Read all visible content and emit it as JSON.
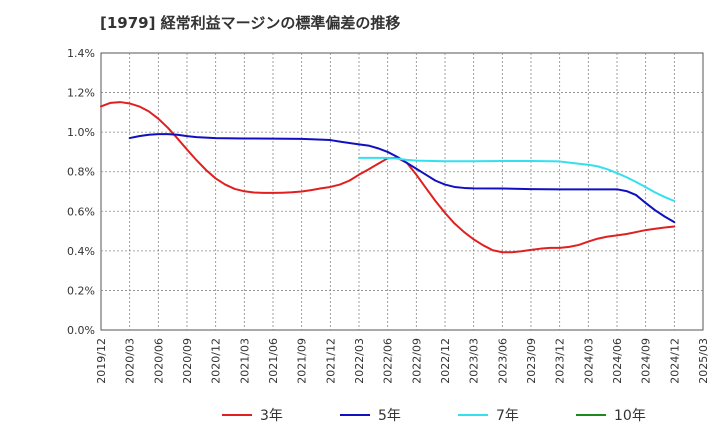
{
  "title": "[1979]  経常利益マージンの標準偏差の推移",
  "colors": {
    "3y": "#e02020",
    "5y": "#1010c0",
    "7y": "#33e0ee",
    "10y": "#1a8a1a",
    "grid": "#888888",
    "axis": "#555555"
  },
  "chart_data": {
    "type": "line",
    "title": "[1979]  経常利益マージンの標準偏差の推移",
    "xlabel": "",
    "ylabel": "",
    "ylim": [
      0,
      0.014
    ],
    "x_ticks": [
      "2019/12",
      "2020/03",
      "2020/06",
      "2020/09",
      "2020/12",
      "2021/03",
      "2021/06",
      "2021/09",
      "2021/12",
      "2022/03",
      "2022/06",
      "2022/09",
      "2022/12",
      "2023/03",
      "2023/06",
      "2023/09",
      "2023/12",
      "2024/03",
      "2024/06",
      "2024/09",
      "2024/12",
      "2025/03"
    ],
    "y_ticks": [
      "0.0%",
      "0.2%",
      "0.4%",
      "0.6%",
      "0.8%",
      "1.0%",
      "1.2%",
      "1.4%"
    ],
    "grid": true,
    "legend_position": "bottom",
    "series": [
      {
        "name": "3年",
        "color_key": "3y",
        "points": [
          [
            "2019/12",
            0.0113
          ],
          [
            "2020/01",
            0.01148
          ],
          [
            "2020/02",
            0.01152
          ],
          [
            "2020/03",
            0.01145
          ],
          [
            "2020/04",
            0.0113
          ],
          [
            "2020/05",
            0.01105
          ],
          [
            "2020/06",
            0.01068
          ],
          [
            "2020/07",
            0.01022
          ],
          [
            "2020/08",
            0.00968
          ],
          [
            "2020/09",
            0.00912
          ],
          [
            "2020/10",
            0.00858
          ],
          [
            "2020/11",
            0.00808
          ],
          [
            "2020/12",
            0.00766
          ],
          [
            "2021/01",
            0.00735
          ],
          [
            "2021/02",
            0.00713
          ],
          [
            "2021/03",
            0.00701
          ],
          [
            "2021/04",
            0.00695
          ],
          [
            "2021/05",
            0.00693
          ],
          [
            "2021/06",
            0.00693
          ],
          [
            "2021/07",
            0.00694
          ],
          [
            "2021/08",
            0.00696
          ],
          [
            "2021/09",
            0.007
          ],
          [
            "2021/10",
            0.00707
          ],
          [
            "2021/11",
            0.00716
          ],
          [
            "2021/12",
            0.00723
          ],
          [
            "2022/01",
            0.00735
          ],
          [
            "2022/02",
            0.00755
          ],
          [
            "2022/03",
            0.00785
          ],
          [
            "2022/04",
            0.00812
          ],
          [
            "2022/05",
            0.0084
          ],
          [
            "2022/06",
            0.00868
          ],
          [
            "2022/07",
            0.0087
          ],
          [
            "2022/08",
            0.00845
          ],
          [
            "2022/09",
            0.00785
          ],
          [
            "2022/10",
            0.00718
          ],
          [
            "2022/11",
            0.00652
          ],
          [
            "2022/12",
            0.00592
          ],
          [
            "2023/01",
            0.00538
          ],
          [
            "2023/02",
            0.00495
          ],
          [
            "2023/03",
            0.00458
          ],
          [
            "2023/04",
            0.00428
          ],
          [
            "2023/05",
            0.00403
          ],
          [
            "2023/06",
            0.00393
          ],
          [
            "2023/07",
            0.00393
          ],
          [
            "2023/08",
            0.00398
          ],
          [
            "2023/09",
            0.00405
          ],
          [
            "2023/10",
            0.00411
          ],
          [
            "2023/11",
            0.00415
          ],
          [
            "2023/12",
            0.00415
          ],
          [
            "2024/01",
            0.0042
          ],
          [
            "2024/02",
            0.0043
          ],
          [
            "2024/03",
            0.00447
          ],
          [
            "2024/04",
            0.00462
          ],
          [
            "2024/05",
            0.00472
          ],
          [
            "2024/06",
            0.00478
          ],
          [
            "2024/07",
            0.00485
          ],
          [
            "2024/08",
            0.00495
          ],
          [
            "2024/09",
            0.00505
          ],
          [
            "2024/10",
            0.00512
          ],
          [
            "2024/11",
            0.00518
          ],
          [
            "2024/12",
            0.00523
          ]
        ]
      },
      {
        "name": "5年",
        "color_key": "5y",
        "points": [
          [
            "2020/03",
            0.0097
          ],
          [
            "2020/04",
            0.0098
          ],
          [
            "2020/05",
            0.00987
          ],
          [
            "2020/06",
            0.0099
          ],
          [
            "2020/07",
            0.0099
          ],
          [
            "2020/08",
            0.00987
          ],
          [
            "2020/09",
            0.0098
          ],
          [
            "2020/10",
            0.00975
          ],
          [
            "2020/11",
            0.00972
          ],
          [
            "2020/12",
            0.0097
          ],
          [
            "2021/03",
            0.00968
          ],
          [
            "2021/06",
            0.00967
          ],
          [
            "2021/09",
            0.00966
          ],
          [
            "2021/12",
            0.0096
          ],
          [
            "2022/01",
            0.00952
          ],
          [
            "2022/02",
            0.00945
          ],
          [
            "2022/03",
            0.00938
          ],
          [
            "2022/04",
            0.00932
          ],
          [
            "2022/05",
            0.00918
          ],
          [
            "2022/06",
            0.009
          ],
          [
            "2022/07",
            0.00875
          ],
          [
            "2022/08",
            0.00845
          ],
          [
            "2022/09",
            0.00815
          ],
          [
            "2022/10",
            0.00785
          ],
          [
            "2022/11",
            0.00755
          ],
          [
            "2022/12",
            0.00735
          ],
          [
            "2023/01",
            0.00723
          ],
          [
            "2023/02",
            0.00718
          ],
          [
            "2023/03",
            0.00716
          ],
          [
            "2023/06",
            0.00715
          ],
          [
            "2023/09",
            0.00712
          ],
          [
            "2023/12",
            0.00711
          ],
          [
            "2024/03",
            0.00711
          ],
          [
            "2024/06",
            0.00711
          ],
          [
            "2024/07",
            0.00702
          ],
          [
            "2024/08",
            0.00682
          ],
          [
            "2024/09",
            0.00642
          ],
          [
            "2024/10",
            0.00605
          ],
          [
            "2024/11",
            0.00573
          ],
          [
            "2024/12",
            0.00545
          ]
        ]
      },
      {
        "name": "7年",
        "color_key": "7y",
        "points": [
          [
            "2022/03",
            0.0087
          ],
          [
            "2022/04",
            0.0087
          ],
          [
            "2022/05",
            0.0087
          ],
          [
            "2022/06",
            0.0087
          ],
          [
            "2022/07",
            0.00866
          ],
          [
            "2022/08",
            0.0086
          ],
          [
            "2022/09",
            0.00856
          ],
          [
            "2022/12",
            0.00853
          ],
          [
            "2023/03",
            0.00853
          ],
          [
            "2023/06",
            0.00854
          ],
          [
            "2023/09",
            0.00854
          ],
          [
            "2023/12",
            0.00852
          ],
          [
            "2024/01",
            0.00846
          ],
          [
            "2024/02",
            0.0084
          ],
          [
            "2024/03",
            0.00835
          ],
          [
            "2024/04",
            0.00827
          ],
          [
            "2024/05",
            0.00812
          ],
          [
            "2024/06",
            0.00793
          ],
          [
            "2024/07",
            0.00772
          ],
          [
            "2024/08",
            0.00748
          ],
          [
            "2024/09",
            0.00722
          ],
          [
            "2024/10",
            0.00695
          ],
          [
            "2024/11",
            0.00672
          ],
          [
            "2024/12",
            0.00652
          ]
        ]
      },
      {
        "name": "10年",
        "color_key": "10y",
        "points": []
      }
    ]
  }
}
